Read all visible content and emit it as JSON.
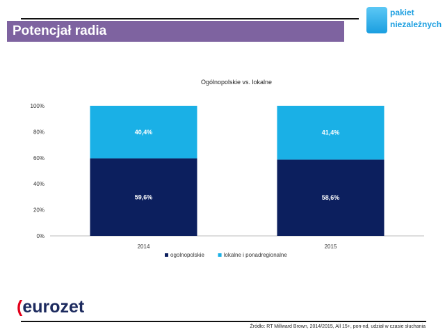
{
  "slide": {
    "title": "Potencjał radia",
    "logo_text": [
      "pakiet",
      "niezależnych"
    ],
    "brand": "eurozet",
    "source": "Źródło: RT  Millward Brown, 2014/2015, All 15+,  pon-nd, udział w czasie słuchania"
  },
  "chart_data": {
    "type": "bar",
    "stacked": true,
    "title": "Ogólnopolskie vs. lokalne",
    "categories": [
      "2014",
      "2015"
    ],
    "series": [
      {
        "name": "ogolnopolskie",
        "values": [
          59.6,
          58.6
        ],
        "labels": [
          "59,6%",
          "58,6%"
        ],
        "color": "#0c1f5e"
      },
      {
        "name": "lokalne i ponadregionalne",
        "values": [
          40.4,
          41.4
        ],
        "labels": [
          "40,4%",
          "41,4%"
        ],
        "color": "#1ab0e6"
      }
    ],
    "ylim": [
      0,
      100
    ],
    "yticks": [
      "0%",
      "20%",
      "40%",
      "60%",
      "80%",
      "100%"
    ],
    "grid": false,
    "legend": "bottom"
  }
}
